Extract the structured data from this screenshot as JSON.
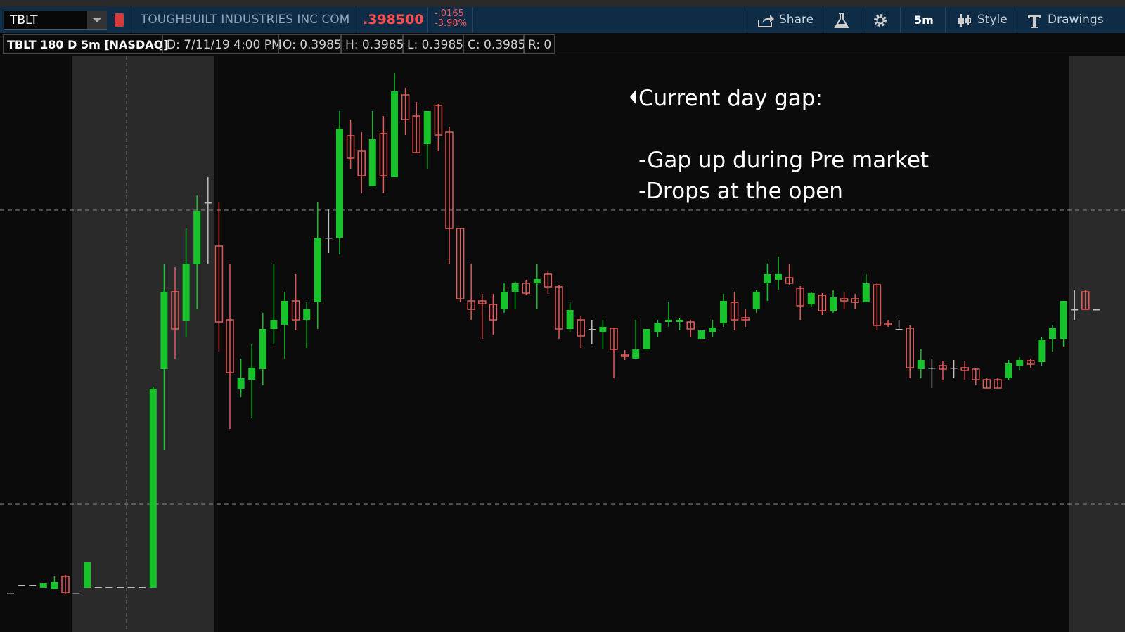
{
  "header": {
    "symbol": "TBLT",
    "company": "TOUGHBUILT INDUSTRIES INC COM",
    "price": ".398500",
    "change": "-.0165",
    "change_pct": "-3.98%",
    "buttons": {
      "share": "Share",
      "period": "5m",
      "style": "Style",
      "drawings": "Drawings"
    }
  },
  "info_bar": {
    "study": "TBLT 180 D 5m [NASDAQ]",
    "date": "D: 7/11/19 4:00 PM",
    "open": "O: 0.3985",
    "high": "H: 0.3985",
    "low": "L: 0.3985",
    "close": "C: 0.3985",
    "range": "R: 0"
  },
  "chart_data": {
    "type": "candlestick",
    "annotation": {
      "title": "Current day gap:",
      "lines": [
        "-Gap up during Pre market",
        "-Drops at the open"
      ]
    },
    "up_color": "#18c22b",
    "down_color": "#e35a5a",
    "doji_color": "#bdbdbd",
    "ylim": [
      0.3526,
      0.4345
    ],
    "hlines": [
      0.4126,
      0.3708
    ],
    "open": [
      0.3582,
      0.3593,
      0.3593,
      0.3589,
      0.3587,
      0.3605,
      0.3582,
      0.3589,
      0.359,
      0.359,
      0.359,
      0.359,
      0.359,
      0.3589,
      0.39,
      0.401,
      0.3969,
      0.4049,
      0.4137,
      0.4075,
      0.397,
      0.3872,
      0.3885,
      0.39,
      0.3957,
      0.3963,
      0.3997,
      0.397,
      0.3995,
      0.4087,
      0.4087,
      0.4232,
      0.421,
      0.416,
      0.4235,
      0.4173,
      0.429,
      0.426,
      0.422,
      0.4275,
      0.4237,
      0.41,
      0.3997,
      0.3997,
      0.3992,
      0.3985,
      0.401,
      0.4022,
      0.4022,
      0.4035,
      0.4017,
      0.3957,
      0.397,
      0.3957,
      0.3953,
      0.3958,
      0.392,
      0.3915,
      0.3928,
      0.3953,
      0.3967,
      0.3967,
      0.3967,
      0.3943,
      0.3953,
      0.3965,
      0.3995,
      0.3973,
      0.3985,
      0.4022,
      0.4027,
      0.403,
      0.4015,
      0.3992,
      0.4005,
      0.3983,
      0.4,
      0.4,
      0.3995,
      0.402,
      0.3965,
      0.3957,
      0.3958,
      0.39,
      0.3902,
      0.3905,
      0.3902,
      0.3902,
      0.39,
      0.3885,
      0.3885,
      0.3887,
      0.3905,
      0.3912,
      0.391,
      0.3943,
      0.3943,
      0.3985,
      0.401,
      0.3985
    ],
    "high": [
      0.3582,
      0.3593,
      0.3593,
      0.3595,
      0.3605,
      0.3607,
      0.3582,
      0.3625,
      0.359,
      0.359,
      0.359,
      0.359,
      0.359,
      0.3875,
      0.4049,
      0.4045,
      0.41,
      0.4147,
      0.4173,
      0.4137,
      0.405,
      0.3915,
      0.3935,
      0.398,
      0.405,
      0.401,
      0.4035,
      0.3995,
      0.4137,
      0.4127,
      0.4267,
      0.4255,
      0.4237,
      0.4267,
      0.426,
      0.4321,
      0.43,
      0.428,
      0.4267,
      0.4277,
      0.4245,
      0.41,
      0.405,
      0.4007,
      0.4007,
      0.4022,
      0.4025,
      0.4027,
      0.4049,
      0.4039,
      0.4019,
      0.3995,
      0.3975,
      0.397,
      0.397,
      0.3958,
      0.3927,
      0.397,
      0.3957,
      0.397,
      0.3995,
      0.3972,
      0.397,
      0.3955,
      0.397,
      0.4007,
      0.401,
      0.3985,
      0.4013,
      0.405,
      0.406,
      0.4049,
      0.4018,
      0.401,
      0.4008,
      0.4012,
      0.401,
      0.4007,
      0.4035,
      0.4022,
      0.397,
      0.397,
      0.3962,
      0.3928,
      0.3915,
      0.3912,
      0.3913,
      0.3912,
      0.3902,
      0.3887,
      0.3887,
      0.3913,
      0.3917,
      0.3915,
      0.3945,
      0.3963,
      0.3997,
      0.4012,
      0.4012,
      0.3985
    ],
    "low": [
      0.3582,
      0.3593,
      0.3593,
      0.3589,
      0.3587,
      0.358,
      0.3582,
      0.3589,
      0.359,
      0.359,
      0.359,
      0.359,
      0.359,
      0.3589,
      0.3785,
      0.3915,
      0.3945,
      0.3985,
      0.405,
      0.3925,
      0.3815,
      0.386,
      0.383,
      0.3877,
      0.3935,
      0.3915,
      0.3955,
      0.393,
      0.3957,
      0.4065,
      0.4063,
      0.4185,
      0.415,
      0.416,
      0.415,
      0.4173,
      0.4233,
      0.4208,
      0.4185,
      0.421,
      0.405,
      0.3995,
      0.397,
      0.3943,
      0.3949,
      0.398,
      0.3985,
      0.4005,
      0.3985,
      0.4007,
      0.3943,
      0.3953,
      0.393,
      0.3935,
      0.3929,
      0.3887,
      0.3913,
      0.3915,
      0.3928,
      0.3945,
      0.396,
      0.3955,
      0.3945,
      0.3943,
      0.3945,
      0.396,
      0.3955,
      0.396,
      0.398,
      0.3997,
      0.4013,
      0.402,
      0.397,
      0.3988,
      0.3977,
      0.398,
      0.3985,
      0.3985,
      0.3995,
      0.3955,
      0.396,
      0.3955,
      0.3887,
      0.3887,
      0.3873,
      0.3885,
      0.3887,
      0.3885,
      0.3877,
      0.3873,
      0.3873,
      0.3885,
      0.3898,
      0.3902,
      0.3905,
      0.3925,
      0.3932,
      0.397,
      0.3985,
      0.3985
    ],
    "close": [
      0.3582,
      0.3593,
      0.3593,
      0.3595,
      0.3597,
      0.3582,
      0.3582,
      0.3625,
      0.359,
      0.359,
      0.359,
      0.359,
      0.359,
      0.3872,
      0.401,
      0.3957,
      0.405,
      0.4125,
      0.4137,
      0.3967,
      0.3895,
      0.3887,
      0.3902,
      0.3957,
      0.397,
      0.3997,
      0.397,
      0.3985,
      0.4087,
      0.4087,
      0.4242,
      0.42,
      0.4175,
      0.4227,
      0.4175,
      0.4295,
      0.4255,
      0.4208,
      0.4267,
      0.4233,
      0.41,
      0.4,
      0.3985,
      0.3993,
      0.397,
      0.401,
      0.4022,
      0.4008,
      0.4028,
      0.4017,
      0.3957,
      0.3984,
      0.3947,
      0.3957,
      0.396,
      0.3928,
      0.3918,
      0.3928,
      0.3957,
      0.3965,
      0.397,
      0.397,
      0.3957,
      0.3955,
      0.3959,
      0.3997,
      0.397,
      0.397,
      0.401,
      0.4035,
      0.4035,
      0.4022,
      0.399,
      0.4008,
      0.3983,
      0.4002,
      0.3997,
      0.3995,
      0.4022,
      0.3962,
      0.3963,
      0.3957,
      0.3902,
      0.3913,
      0.3902,
      0.39,
      0.3902,
      0.3898,
      0.3885,
      0.3873,
      0.3873,
      0.3908,
      0.3913,
      0.3907,
      0.3942,
      0.3958,
      0.3997,
      0.3985,
      0.3985,
      0.3985
    ]
  }
}
